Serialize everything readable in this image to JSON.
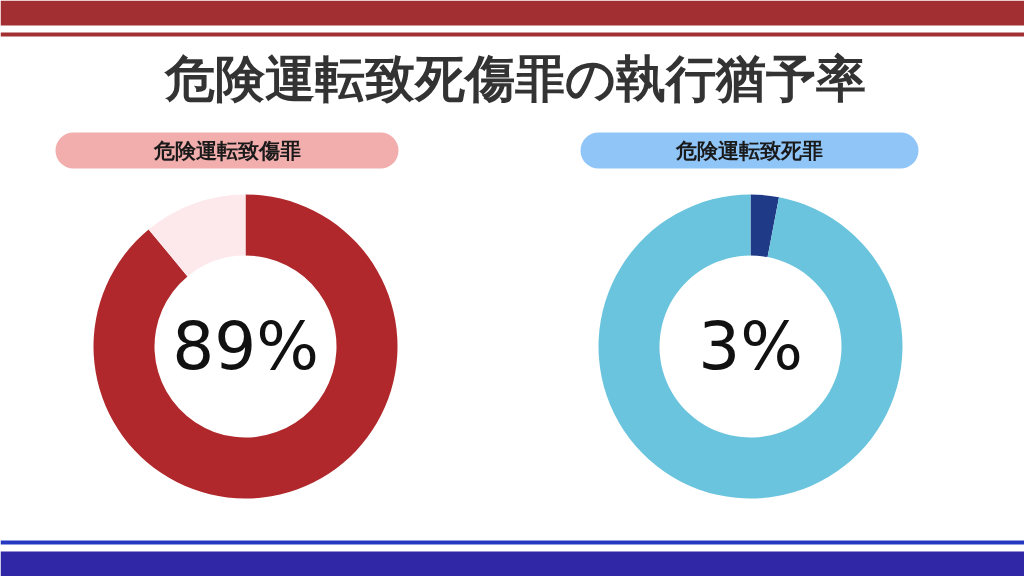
{
  "chart_data": [
    {
      "type": "donut",
      "title": "危険運転致死傷罪の執行猶予率",
      "subtitle": "危険運転致傷罪",
      "categories": [
        null,
        null
      ],
      "values": [
        89,
        11
      ],
      "colors": [
        "#b0282b",
        "#fde9ec"
      ],
      "annotations": [
        "89%"
      ]
    },
    {
      "type": "donut",
      "subtitle": "危険運転致死罪",
      "categories": [
        null,
        null
      ],
      "values": [
        3,
        97
      ],
      "colors": [
        "#1f3a87",
        "#6bc4dd"
      ],
      "annotations": [
        "3%"
      ]
    }
  ]
}
